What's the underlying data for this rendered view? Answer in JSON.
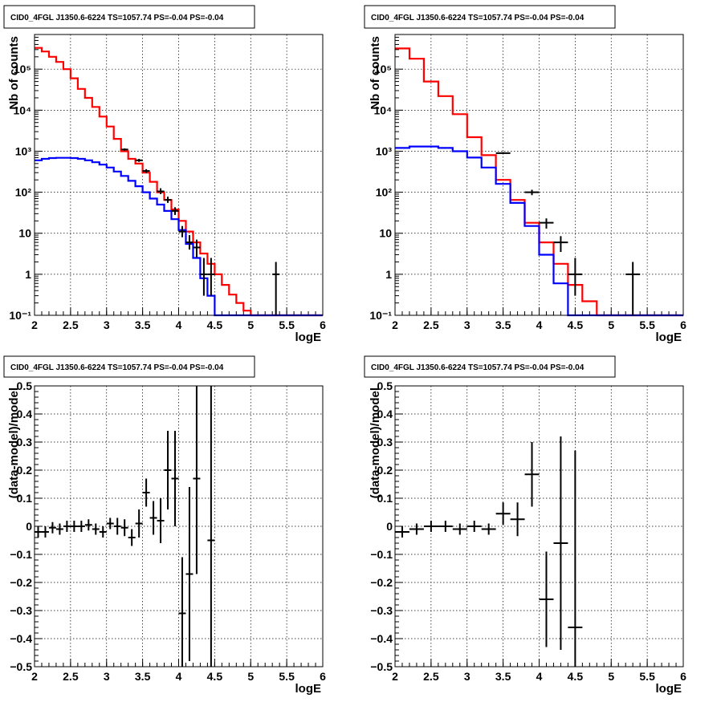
{
  "chart_data": [
    {
      "type": "line",
      "title": "CID0_4FGL J1350.6-6224 TS=1057.74 PS=-0.04 PS=-0.04",
      "xlabel": "logE",
      "ylabel": "Nb of counts",
      "xlim": [
        2,
        6
      ],
      "ylim": [
        0.1,
        700000
      ],
      "yscale": "log",
      "xticks": [
        "2",
        "2.5",
        "3",
        "3.5",
        "4",
        "4.5",
        "5",
        "5.5",
        "6"
      ],
      "yticks": [
        "10⁻¹",
        "1",
        "10",
        "10²",
        "10³",
        "10⁴",
        "10⁵"
      ],
      "grid": true,
      "bin_edges": [
        2.0,
        2.1,
        2.2,
        2.3,
        2.4,
        2.5,
        2.6,
        2.7,
        2.8,
        2.9,
        3.0,
        3.1,
        3.2,
        3.3,
        3.4,
        3.5,
        3.6,
        3.7,
        3.8,
        3.9,
        4.0,
        4.1,
        4.2,
        4.3,
        4.4,
        4.5,
        4.6,
        4.7,
        4.8,
        4.9,
        5.0,
        5.1,
        5.2,
        5.3,
        5.4,
        5.5,
        5.6,
        5.7,
        5.8,
        5.9,
        6.0
      ],
      "series": [
        {
          "color": "#ff0000",
          "style": "step",
          "values": [
            330000,
            270000,
            200000,
            150000,
            100000,
            60000,
            33000,
            20000,
            12000,
            7000,
            4000,
            2000,
            1000,
            650,
            500,
            300,
            180,
            100,
            65,
            38,
            20,
            11,
            6,
            3.2,
            1.8,
            1.0,
            0.55,
            0.32,
            0.2,
            0.13,
            0.1,
            0.1,
            0.1,
            0.1,
            0.1,
            0.1,
            0.1,
            0.1,
            0.1,
            0.1
          ]
        },
        {
          "color": "#0000ff",
          "style": "step",
          "values": [
            600,
            650,
            680,
            690,
            690,
            680,
            650,
            600,
            540,
            470,
            400,
            320,
            250,
            190,
            140,
            100,
            70,
            50,
            35,
            22,
            12,
            5.5,
            2.5,
            0.8,
            0.3,
            0.1,
            0.1,
            0.1,
            0.1,
            0.1,
            0.1,
            0.1,
            0.1,
            0.1,
            0.1,
            0.1,
            0.1,
            0.1,
            0.1,
            0.1
          ]
        },
        {
          "color": "#000000",
          "style": "errorbar",
          "points": [
            {
              "x": 3.25,
              "y": 1100,
              "ylo": 1030,
              "yhi": 1170
            },
            {
              "x": 3.45,
              "y": 600,
              "ylo": 550,
              "yhi": 650
            },
            {
              "x": 3.55,
              "y": 330,
              "ylo": 295,
              "yhi": 365
            },
            {
              "x": 3.75,
              "y": 105,
              "ylo": 90,
              "yhi": 125
            },
            {
              "x": 3.85,
              "y": 65,
              "ylo": 55,
              "yhi": 78
            },
            {
              "x": 3.95,
              "y": 35,
              "ylo": 28,
              "yhi": 43
            },
            {
              "x": 4.05,
              "y": 11,
              "ylo": 8,
              "yhi": 15
            },
            {
              "x": 4.15,
              "y": 6,
              "ylo": 4,
              "yhi": 9
            },
            {
              "x": 4.25,
              "y": 4.5,
              "ylo": 2.6,
              "yhi": 7
            },
            {
              "x": 4.35,
              "y": 1,
              "ylo": 0.3,
              "yhi": 2.5
            },
            {
              "x": 4.45,
              "y": 1,
              "ylo": 0.3,
              "yhi": 2.5
            },
            {
              "x": 5.35,
              "y": 1,
              "ylo": 0.1,
              "yhi": 2
            }
          ]
        }
      ]
    },
    {
      "type": "line",
      "title": "CID0_4FGL J1350.6-6224 TS=1057.74 PS=-0.04 PS=-0.04",
      "xlabel": "logE",
      "ylabel": "Nb of counts",
      "xlim": [
        2,
        6
      ],
      "ylim": [
        0.1,
        700000
      ],
      "yscale": "log",
      "xticks": [
        "2",
        "2.5",
        "3",
        "3.5",
        "4",
        "4.5",
        "5",
        "5.5",
        "6"
      ],
      "yticks": [
        "10⁻¹",
        "1",
        "10",
        "10²",
        "10³",
        "10⁴",
        "10⁵"
      ],
      "grid": true,
      "bin_edges": [
        2.0,
        2.2,
        2.4,
        2.6,
        2.8,
        3.0,
        3.2,
        3.4,
        3.6,
        3.8,
        4.0,
        4.2,
        4.4,
        4.6,
        4.8,
        5.0,
        5.2,
        5.4,
        5.6,
        5.8,
        6.0
      ],
      "series": [
        {
          "color": "#ff0000",
          "style": "step",
          "values": [
            320000,
            180000,
            50000,
            22000,
            8000,
            2200,
            800,
            200,
            65,
            18,
            6,
            1.8,
            0.55,
            0.22,
            0.1,
            0.1,
            0.1,
            0.1,
            0.1,
            0.1
          ]
        },
        {
          "color": "#0000ff",
          "style": "step",
          "values": [
            1200,
            1300,
            1300,
            1200,
            1000,
            700,
            400,
            160,
            55,
            15,
            3,
            0.6,
            0.1,
            0.1,
            0.1,
            0.1,
            0.1,
            0.1,
            0.1,
            0.1
          ]
        },
        {
          "color": "#000000",
          "style": "errorbar",
          "points": [
            {
              "x": 3.5,
              "y": 900,
              "ylo": 850,
              "yhi": 950
            },
            {
              "x": 3.9,
              "y": 100,
              "ylo": 85,
              "yhi": 115
            },
            {
              "x": 4.1,
              "y": 18,
              "ylo": 13,
              "yhi": 23
            },
            {
              "x": 4.3,
              "y": 6,
              "ylo": 3.5,
              "yhi": 8.5
            },
            {
              "x": 4.5,
              "y": 1,
              "ylo": 0.3,
              "yhi": 2.5
            },
            {
              "x": 5.3,
              "y": 1,
              "ylo": 0.1,
              "yhi": 2
            }
          ]
        }
      ]
    },
    {
      "type": "scatter",
      "title": "CID0_4FGL J1350.6-6224 TS=1057.74 PS=-0.04 PS=-0.04",
      "xlabel": "logE",
      "ylabel": "(data-model)/model",
      "xlim": [
        2,
        6
      ],
      "ylim": [
        -0.5,
        0.5
      ],
      "xticks": [
        "2",
        "2.5",
        "3",
        "3.5",
        "4",
        "4.5",
        "5",
        "5.5",
        "6"
      ],
      "yticks": [
        "−0.5",
        "−0.4",
        "−0.3",
        "−0.2",
        "−0.1",
        "0",
        "0.1",
        "0.2",
        "0.3",
        "0.4",
        "0.5"
      ],
      "grid": true,
      "series": [
        {
          "color": "#000000",
          "style": "errorbar",
          "halfwidth": 0.05,
          "points": [
            {
              "x": 2.05,
              "y": -0.02,
              "err": 0.02
            },
            {
              "x": 2.15,
              "y": -0.02,
              "err": 0.02
            },
            {
              "x": 2.25,
              "y": -0.005,
              "err": 0.02
            },
            {
              "x": 2.35,
              "y": -0.01,
              "err": 0.02
            },
            {
              "x": 2.45,
              "y": 0.0,
              "err": 0.02
            },
            {
              "x": 2.55,
              "y": 0.0,
              "err": 0.02
            },
            {
              "x": 2.65,
              "y": 0.0,
              "err": 0.02
            },
            {
              "x": 2.75,
              "y": 0.005,
              "err": 0.02
            },
            {
              "x": 2.85,
              "y": -0.01,
              "err": 0.02
            },
            {
              "x": 2.95,
              "y": -0.02,
              "err": 0.02
            },
            {
              "x": 3.05,
              "y": 0.01,
              "err": 0.02
            },
            {
              "x": 3.15,
              "y": 0.0,
              "err": 0.03
            },
            {
              "x": 3.25,
              "y": -0.005,
              "err": 0.03
            },
            {
              "x": 3.35,
              "y": -0.04,
              "err": 0.03
            },
            {
              "x": 3.45,
              "y": 0.01,
              "err": 0.05
            },
            {
              "x": 3.55,
              "y": 0.12,
              "err": 0.05
            },
            {
              "x": 3.65,
              "y": 0.03,
              "err": 0.06
            },
            {
              "x": 3.75,
              "y": 0.02,
              "err": 0.08
            },
            {
              "x": 3.85,
              "y": 0.2,
              "err": 0.14
            },
            {
              "x": 3.95,
              "y": 0.17,
              "err": 0.17
            },
            {
              "x": 4.05,
              "y": -0.31,
              "err": 0.2
            },
            {
              "x": 4.15,
              "y": -0.17,
              "err": 0.31
            },
            {
              "x": 4.25,
              "y": 0.17,
              "err": 0.34
            },
            {
              "x": 4.45,
              "y": -0.05,
              "err": 0.6
            }
          ]
        }
      ]
    },
    {
      "type": "scatter",
      "title": "CID0_4FGL J1350.6-6224 TS=1057.74 PS=-0.04 PS=-0.04",
      "xlabel": "logE",
      "ylabel": "(data-model)/model",
      "xlim": [
        2,
        6
      ],
      "ylim": [
        -0.5,
        0.5
      ],
      "xticks": [
        "2",
        "2.5",
        "3",
        "3.5",
        "4",
        "4.5",
        "5",
        "5.5",
        "6"
      ],
      "yticks": [
        "−0.5",
        "−0.4",
        "−0.3",
        "−0.2",
        "−0.1",
        "0",
        "0.1",
        "0.2",
        "0.3",
        "0.4",
        "0.5"
      ],
      "grid": true,
      "series": [
        {
          "color": "#000000",
          "style": "errorbar",
          "halfwidth": 0.1,
          "points": [
            {
              "x": 2.1,
              "y": -0.02,
              "err": 0.02
            },
            {
              "x": 2.3,
              "y": -0.01,
              "err": 0.02
            },
            {
              "x": 2.5,
              "y": 0.0,
              "err": 0.02
            },
            {
              "x": 2.7,
              "y": 0.0,
              "err": 0.02
            },
            {
              "x": 2.9,
              "y": -0.01,
              "err": 0.02
            },
            {
              "x": 3.1,
              "y": 0.0,
              "err": 0.02
            },
            {
              "x": 3.3,
              "y": -0.01,
              "err": 0.02
            },
            {
              "x": 3.5,
              "y": 0.045,
              "err": 0.04
            },
            {
              "x": 3.7,
              "y": 0.025,
              "err": 0.06
            },
            {
              "x": 3.9,
              "y": 0.185,
              "err": 0.115
            },
            {
              "x": 4.1,
              "y": -0.26,
              "err": 0.17
            },
            {
              "x": 4.3,
              "y": -0.06,
              "err": 0.38
            },
            {
              "x": 4.5,
              "y": -0.36,
              "err": 0.63
            }
          ]
        }
      ]
    }
  ]
}
